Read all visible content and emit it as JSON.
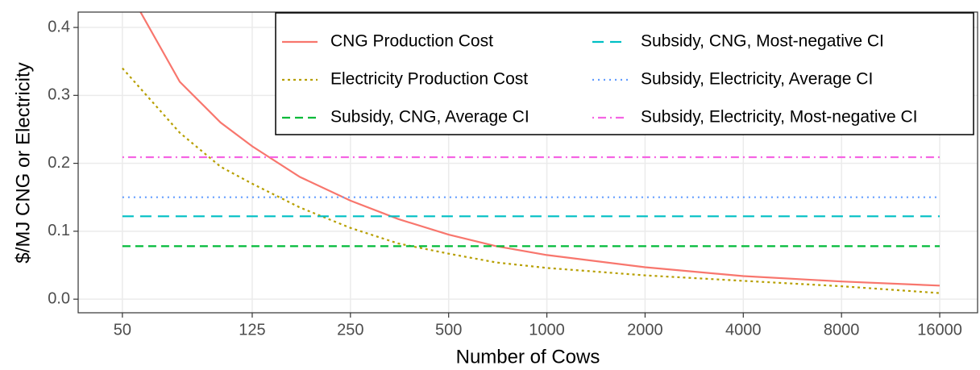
{
  "chart_data": {
    "type": "line",
    "xlabel": "Number of Cows",
    "ylabel": "$/MJ CNG or Electricity",
    "xscale": "log",
    "xlim": [
      36.6,
      20900
    ],
    "xticks": [
      50,
      125,
      250,
      500,
      1000,
      2000,
      4000,
      8000,
      16000
    ],
    "ylim": [
      -0.02,
      0.4226
    ],
    "yticks": [
      {
        "value": 0,
        "label": "0.0"
      },
      0.1,
      0.2,
      0.3,
      0.4
    ],
    "grid": true,
    "legend": "top-right",
    "series": [
      {
        "name": "CNG Production Cost",
        "color": "#F8766D",
        "linetype": "solid",
        "x": [
          50,
          75,
          100,
          125,
          175,
          250,
          350,
          500,
          700,
          1000,
          2000,
          4000,
          8000,
          16000
        ],
        "values": [
          0.47,
          0.32,
          0.26,
          0.225,
          0.18,
          0.145,
          0.118,
          0.095,
          0.078,
          0.065,
          0.047,
          0.034,
          0.026,
          0.02
        ]
      },
      {
        "name": "Electricity Production Cost",
        "color": "#B79F00",
        "linetype": "dotted",
        "x": [
          50,
          75,
          100,
          125,
          175,
          250,
          350,
          500,
          700,
          1000,
          2000,
          4000,
          8000,
          16000
        ],
        "values": [
          0.34,
          0.245,
          0.195,
          0.17,
          0.135,
          0.105,
          0.082,
          0.067,
          0.054,
          0.046,
          0.035,
          0.027,
          0.019,
          0.009
        ]
      },
      {
        "name": "Subsidy, CNG, Average CI",
        "color": "#00BA38",
        "linetype": "dashed",
        "x": [
          50,
          16000
        ],
        "values": [
          0.078,
          0.078
        ]
      },
      {
        "name": "Subsidy, CNG, Most-negative CI",
        "color": "#00BFC4",
        "linetype": "longdash",
        "x": [
          50,
          16000
        ],
        "values": [
          0.122,
          0.122
        ]
      },
      {
        "name": "Subsidy, Electricity, Average CI",
        "color": "#619CFF",
        "linetype": "finedotted",
        "x": [
          50,
          16000
        ],
        "values": [
          0.15,
          0.15
        ]
      },
      {
        "name": "Subsidy, Electricity, Most-negative CI",
        "color": "#F564E3",
        "linetype": "dotdash",
        "x": [
          50,
          16000
        ],
        "values": [
          0.209,
          0.209
        ]
      }
    ]
  }
}
